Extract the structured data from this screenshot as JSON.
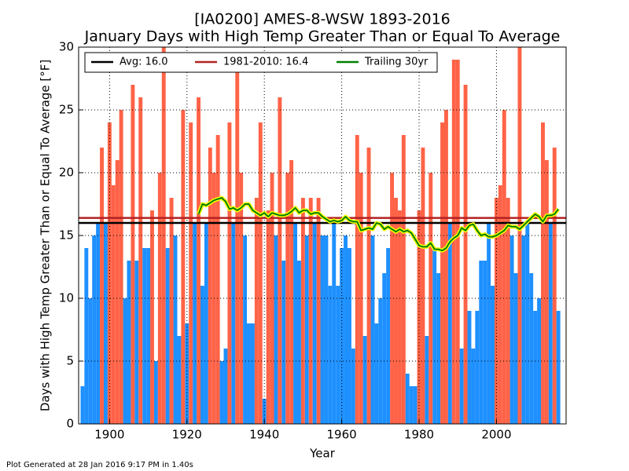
{
  "chart_data": {
    "type": "bar",
    "title": "[IA0200] AMES-8-WSW 1893-2016",
    "subtitle": "January Days with High Temp Greater Than or Equal To Average",
    "x_label": "Year",
    "y_label": "Days with High Temp Greater Than or Equal To Average [°F]",
    "footer": "Plot Generated at 28 Jan 2016 9:17 PM in 1.40s",
    "x_start": 1893,
    "above_color": "#ff6347",
    "below_color": "#1e90ff",
    "series": [
      {
        "name": "January Days",
        "values": [
          3,
          14,
          10,
          15,
          16,
          22,
          16,
          24,
          19,
          21,
          25,
          10,
          13,
          27,
          13,
          26,
          14,
          14,
          17,
          5,
          20,
          30,
          14,
          18,
          15,
          7,
          25,
          8,
          24,
          16,
          26,
          11,
          16,
          22,
          20,
          23,
          5,
          6,
          24,
          16,
          28,
          20,
          15,
          8,
          8,
          18,
          24,
          2,
          17,
          20,
          15,
          26,
          13,
          20,
          21,
          16,
          13,
          18,
          15,
          18,
          16,
          18,
          15,
          15,
          11,
          16,
          11,
          14,
          15,
          14,
          6,
          23,
          20,
          7,
          22,
          15,
          8,
          10,
          12,
          14,
          20,
          18,
          17,
          23,
          4,
          3,
          3,
          17,
          22,
          7,
          20,
          14,
          12,
          24,
          25,
          16,
          29,
          29,
          6,
          27,
          9,
          6,
          9,
          13,
          13,
          16,
          11,
          18,
          19,
          25,
          18,
          15,
          12,
          30,
          15,
          16,
          12,
          9,
          10,
          24,
          21,
          16,
          22,
          9
        ]
      },
      {
        "name": "Trailing 30yr",
        "color": "#008000",
        "halo": "#ffff00",
        "values": [
          null,
          null,
          null,
          null,
          null,
          null,
          null,
          null,
          null,
          null,
          null,
          null,
          null,
          null,
          null,
          null,
          null,
          null,
          null,
          null,
          null,
          null,
          null,
          null,
          null,
          null,
          null,
          null,
          null,
          null,
          16.7,
          17.5,
          17.4,
          17.6,
          17.8,
          17.9,
          18.0,
          17.7,
          17.1,
          17.2,
          17.0,
          17.2,
          17.5,
          17.5,
          17.0,
          16.8,
          16.6,
          16.8,
          16.5,
          16.8,
          16.7,
          16.6,
          16.6,
          16.7,
          16.9,
          17.2,
          16.8,
          17.0,
          17.0,
          16.7,
          16.8,
          16.8,
          16.5,
          16.3,
          16.1,
          16.2,
          16.1,
          16.2,
          16.5,
          16.2,
          16.1,
          16.1,
          15.4,
          15.5,
          15.6,
          15.5,
          16.0,
          15.9,
          15.5,
          15.7,
          15.5,
          15.3,
          15.5,
          15.3,
          15.4,
          15.2,
          14.7,
          14.2,
          14.1,
          14.1,
          14.4,
          13.9,
          13.9,
          13.8,
          14.0,
          14.5,
          14.8,
          15.0,
          15.6,
          15.4,
          15.8,
          15.9,
          15.4,
          15.0,
          15.1,
          14.9,
          14.9,
          15.0,
          15.2,
          15.4,
          15.8,
          15.7,
          15.7,
          15.5,
          15.8,
          16.1,
          16.4,
          16.7,
          16.5,
          16.1,
          16.6,
          16.6,
          16.7,
          17.1
        ]
      }
    ],
    "reference_lines": [
      {
        "name": "Avg: 16.0",
        "value": 16.0,
        "color": "#000000"
      },
      {
        "name": "1981-2010: 16.4",
        "value": 16.4,
        "color": "#b22222"
      }
    ],
    "xlim": [
      1892,
      2018
    ],
    "ylim": [
      0,
      30
    ],
    "xticks": [
      1900,
      1920,
      1940,
      1960,
      1980,
      2000
    ],
    "yticks": [
      0,
      5,
      10,
      15,
      20,
      25,
      30
    ],
    "grid": true
  }
}
